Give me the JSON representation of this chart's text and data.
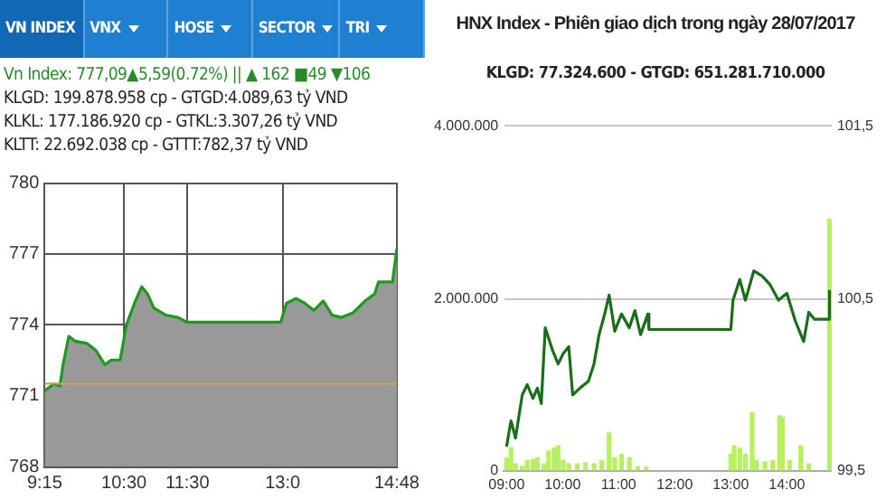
{
  "chart_data": [
    {
      "type": "area",
      "title": "Vn Index: 777,09▲5,59(0.72%) ||  ▲ 162  ■49  ▼106",
      "annotations": [
        "VN INDEX",
        "VNX",
        "HOSE",
        "SECTOR",
        "TRI",
        "KLGD: 199.878.958 cp - GTGD:4.089,63 tỷ VND",
        "KLKL: 177.186.920 cp - GTKL:3.307,26 tỷ VND",
        "KLTT: 22.692.038 cp - GTTT:782,37 tỷ VND"
      ],
      "x": [
        9.25,
        9.35,
        9.39,
        9.49,
        9.54,
        9.63,
        9.73,
        9.92,
        10.06,
        10.2,
        10.3,
        10.44,
        10.54,
        10.68,
        10.78,
        10.87,
        10.97,
        11.16,
        11.35,
        11.49,
        12.97,
        13.06,
        13.21,
        13.35,
        13.49,
        13.64,
        13.78,
        13.92,
        14.11,
        14.3,
        14.45,
        14.51,
        14.73,
        14.8
      ],
      "values": [
        771.2,
        771.4,
        771.5,
        771.4,
        772.3,
        773.5,
        773.3,
        773.2,
        772.9,
        772.3,
        772.5,
        772.5,
        774.0,
        775.0,
        775.6,
        775.3,
        774.7,
        774.4,
        774.3,
        774.1,
        774.1,
        774.9,
        775.1,
        774.9,
        774.6,
        775.0,
        774.4,
        774.3,
        774.5,
        775.0,
        775.3,
        775.8,
        775.8,
        777.2
      ],
      "color": "#1e9a1e",
      "xlim": [
        9.25,
        14.8
      ],
      "xticks": [
        {
          "value": 9.25,
          "label": "9:15"
        },
        {
          "value": 10.5,
          "label": "10:30"
        },
        {
          "value": 11.5,
          "label": "11:30"
        },
        {
          "value": 13,
          "label": "13:0"
        },
        {
          "value": 14.8,
          "label": "14:48"
        }
      ],
      "ylim": [
        768,
        780
      ],
      "yticks": [
        768,
        771,
        774,
        777,
        780
      ],
      "ref_lines": [
        {
          "axis": "y",
          "value": 771.5,
          "color": "#c8a060"
        }
      ],
      "grid": true,
      "legend": false
    },
    {
      "type": "line",
      "title": "HNX Index - Phiên giao dịch trong ngày 28/07/2017",
      "subtitle": "KLGD: 77.324.600 - GTGD: 651.281.710.000",
      "series": [
        {
          "type": "bar",
          "color": "#b8f060",
          "x": [
            9.0,
            9.08,
            9.16,
            9.28,
            9.37,
            9.47,
            9.55,
            9.67,
            9.75,
            9.85,
            9.92,
            10.01,
            10.11,
            10.26,
            10.41,
            10.56,
            10.7,
            10.83,
            10.93,
            11.05,
            11.19,
            11.34,
            11.49,
            13.0,
            13.06,
            13.16,
            13.26,
            13.38,
            13.46,
            13.61,
            13.75,
            13.87,
            13.92,
            14.05,
            14.25,
            14.39,
            14.76
          ],
          "values": [
            150000,
            270000,
            80000,
            50000,
            120000,
            130000,
            150000,
            80000,
            230000,
            260000,
            290000,
            120000,
            80000,
            80000,
            90000,
            80000,
            120000,
            440000,
            150000,
            190000,
            150000,
            50000,
            40000,
            190000,
            290000,
            260000,
            190000,
            670000,
            120000,
            100000,
            120000,
            640000,
            620000,
            120000,
            290000,
            80000,
            2920000
          ]
        },
        {
          "axis": "y2",
          "color": "#1a6e1a",
          "x": [
            9.0,
            9.08,
            9.16,
            9.28,
            9.37,
            9.47,
            9.55,
            9.62,
            9.69,
            9.82,
            9.92,
            10.01,
            10.11,
            10.18,
            10.31,
            10.46,
            10.56,
            10.65,
            10.75,
            10.83,
            10.93,
            11.05,
            11.19,
            11.29,
            11.39,
            11.52,
            11.54,
            13.0,
            13.04,
            13.16,
            13.26,
            13.41,
            13.56,
            13.7,
            13.85,
            14.0,
            14.15,
            14.3,
            14.39,
            14.49,
            14.74,
            14.76
          ],
          "values": [
            99.64,
            99.79,
            99.69,
            99.94,
            100.0,
            99.92,
            99.98,
            99.89,
            100.33,
            100.2,
            100.12,
            100.18,
            100.22,
            99.94,
            99.98,
            100.02,
            100.12,
            100.29,
            100.41,
            100.52,
            100.31,
            100.41,
            100.33,
            100.43,
            100.29,
            100.41,
            100.32,
            100.32,
            100.49,
            100.61,
            100.49,
            100.66,
            100.63,
            100.58,
            100.49,
            100.53,
            100.37,
            100.25,
            100.42,
            100.38,
            100.38,
            100.55
          ]
        }
      ],
      "xlim": [
        8.95,
        14.8
      ],
      "xticks": [
        {
          "value": 9,
          "label": "09:00"
        },
        {
          "value": 10,
          "label": "10:00"
        },
        {
          "value": 11,
          "label": "11:00"
        },
        {
          "value": 12,
          "label": "12:00"
        },
        {
          "value": 13,
          "label": "13:00"
        },
        {
          "value": 14,
          "label": "14:00"
        }
      ],
      "ylim": [
        0,
        4000000
      ],
      "yticks": [
        0,
        {
          "value": 2000000,
          "label": "2.000.000"
        },
        {
          "value": 4000000,
          "label": "4.000.000"
        }
      ],
      "y2lim": [
        99.5,
        101.5
      ],
      "y2ticks": [
        {
          "value": 99.5,
          "label": "99,5"
        },
        {
          "value": 100.5,
          "label": "100,5"
        },
        {
          "value": 101.5,
          "label": "101,5"
        }
      ],
      "grid": "y",
      "legend": false
    }
  ]
}
